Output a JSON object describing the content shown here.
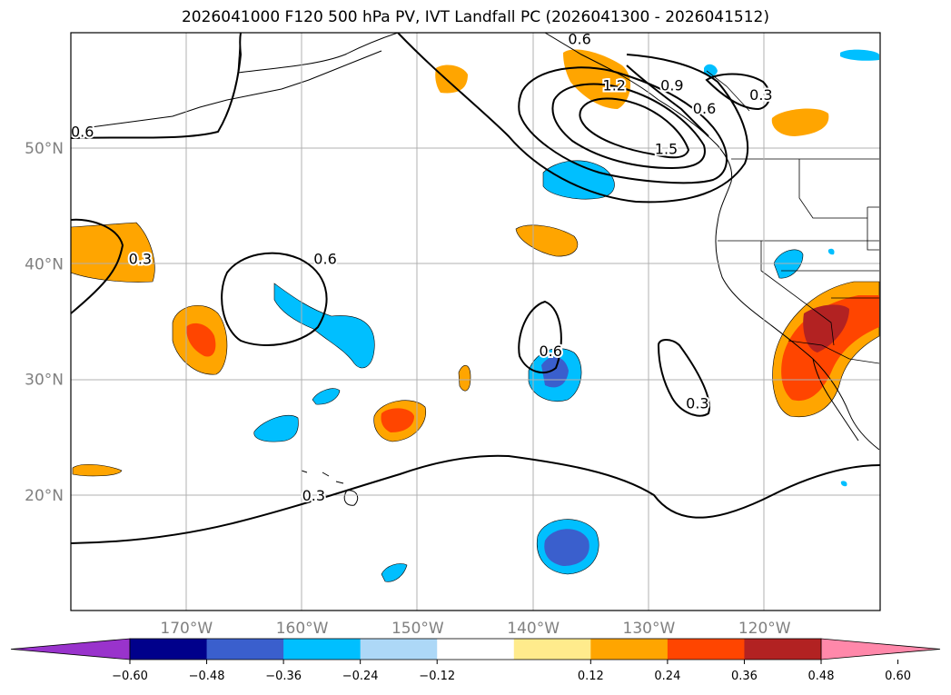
{
  "title": "2026041000 F120 500 hPa PV, IVT Landfall PC (2026041300 - 2026041512)",
  "map": {
    "lon_range": [
      -180,
      -110
    ],
    "lat_range": [
      10,
      60
    ],
    "lon_ticks": [
      {
        "value": -170,
        "label": "170°W"
      },
      {
        "value": -160,
        "label": "160°W"
      },
      {
        "value": -150,
        "label": "150°W"
      },
      {
        "value": -140,
        "label": "140°W"
      },
      {
        "value": -130,
        "label": "130°W"
      },
      {
        "value": -120,
        "label": "120°W"
      }
    ],
    "lat_ticks": [
      {
        "value": 20,
        "label": "20°N"
      },
      {
        "value": 30,
        "label": "30°N"
      },
      {
        "value": 40,
        "label": "40°N"
      },
      {
        "value": 50,
        "label": "50°N"
      }
    ],
    "grid": true
  },
  "contour_labels": [
    {
      "text": "0.6",
      "lon": -179,
      "lat": 51
    },
    {
      "text": "0.3",
      "lon": -174,
      "lat": 40
    },
    {
      "text": "0.6",
      "lon": -158,
      "lat": 40
    },
    {
      "text": "0.3",
      "lon": -159,
      "lat": 19.5
    },
    {
      "text": "0.6",
      "lon": -138.5,
      "lat": 32
    },
    {
      "text": "0.3",
      "lon": -125.8,
      "lat": 27.5
    },
    {
      "text": "0.6",
      "lon": -136,
      "lat": 59
    },
    {
      "text": "1.2",
      "lon": -133,
      "lat": 55
    },
    {
      "text": "0.9",
      "lon": -128,
      "lat": 55
    },
    {
      "text": "1.5",
      "lon": -128.5,
      "lat": 49.5
    },
    {
      "text": "0.6",
      "lon": -125.2,
      "lat": 53
    },
    {
      "text": "0.3",
      "lon": -120.3,
      "lat": 54.2
    }
  ],
  "colorbar": {
    "ticks": [
      "−0.60",
      "−0.48",
      "−0.36",
      "−0.24",
      "−0.12",
      "0.12",
      "0.24",
      "0.36",
      "0.48",
      "0.60"
    ],
    "colors": [
      "#9933cc",
      "#00008b",
      "#3a5fcd",
      "#00bfff",
      "#add8f7",
      "#ffffff",
      "#ffeb8c",
      "#ffa500",
      "#ff4500",
      "#b22222",
      "#ff88aa"
    ]
  }
}
